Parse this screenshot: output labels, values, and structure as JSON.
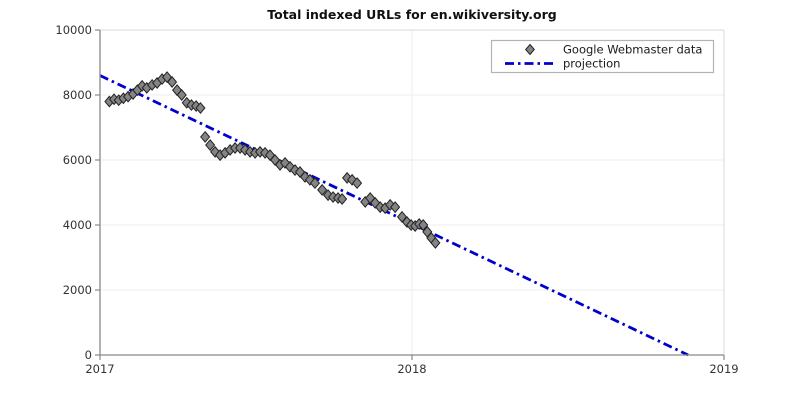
{
  "chart_data": {
    "type": "scatter",
    "title": "Total indexed URLs for en.wikiversity.org",
    "xlabel": "",
    "ylabel": "",
    "xlim": [
      2017,
      2019
    ],
    "ylim": [
      0,
      10000
    ],
    "x_ticks": [
      2017,
      2018,
      2019
    ],
    "x_tick_labels": [
      "2017",
      "2018",
      "2019"
    ],
    "y_ticks": [
      0,
      2000,
      4000,
      6000,
      8000,
      10000
    ],
    "y_tick_labels": [
      "0",
      "2000",
      "4000",
      "6000",
      "8000",
      "10000"
    ],
    "grid": true,
    "legend_position": "upper right",
    "legend": [
      "Google Webmaster data",
      "projection"
    ],
    "colors": {
      "scatter_fill": "#848484",
      "scatter_edge": "#222222",
      "projection_line": "#0000cc",
      "spine_dark": "#898989",
      "spine_light": "#d9d9d9",
      "gridline": "#ededed",
      "legend_border": "#b3b3b3"
    },
    "series": [
      {
        "name": "Google Webmaster data",
        "type": "scatter",
        "marker": "diamond",
        "points": [
          [
            2017.03,
            7800
          ],
          [
            2017.045,
            7870
          ],
          [
            2017.06,
            7840
          ],
          [
            2017.075,
            7900
          ],
          [
            2017.09,
            7950
          ],
          [
            2017.106,
            8030
          ],
          [
            2017.12,
            8150
          ],
          [
            2017.135,
            8280
          ],
          [
            2017.15,
            8220
          ],
          [
            2017.167,
            8310
          ],
          [
            2017.183,
            8370
          ],
          [
            2017.199,
            8490
          ],
          [
            2017.215,
            8550
          ],
          [
            2017.231,
            8400
          ],
          [
            2017.247,
            8150
          ],
          [
            2017.262,
            8000
          ],
          [
            2017.278,
            7760
          ],
          [
            2017.293,
            7690
          ],
          [
            2017.308,
            7660
          ],
          [
            2017.322,
            7600
          ],
          [
            2017.337,
            6710
          ],
          [
            2017.353,
            6460
          ],
          [
            2017.369,
            6250
          ],
          [
            2017.385,
            6150
          ],
          [
            2017.401,
            6220
          ],
          [
            2017.417,
            6310
          ],
          [
            2017.433,
            6370
          ],
          [
            2017.449,
            6370
          ],
          [
            2017.465,
            6310
          ],
          [
            2017.481,
            6250
          ],
          [
            2017.497,
            6220
          ],
          [
            2017.513,
            6250
          ],
          [
            2017.529,
            6220
          ],
          [
            2017.545,
            6150
          ],
          [
            2017.561,
            6000
          ],
          [
            2017.577,
            5850
          ],
          [
            2017.593,
            5910
          ],
          [
            2017.609,
            5790
          ],
          [
            2017.625,
            5690
          ],
          [
            2017.641,
            5630
          ],
          [
            2017.657,
            5480
          ],
          [
            2017.673,
            5390
          ],
          [
            2017.689,
            5290
          ],
          [
            2017.712,
            5080
          ],
          [
            2017.731,
            4920
          ],
          [
            2017.747,
            4860
          ],
          [
            2017.763,
            4830
          ],
          [
            2017.776,
            4800
          ],
          [
            2017.792,
            5450
          ],
          [
            2017.808,
            5390
          ],
          [
            2017.824,
            5290
          ],
          [
            2017.85,
            4710
          ],
          [
            2017.866,
            4830
          ],
          [
            2017.882,
            4680
          ],
          [
            2017.898,
            4550
          ],
          [
            2017.914,
            4520
          ],
          [
            2017.93,
            4620
          ],
          [
            2017.946,
            4550
          ],
          [
            2017.968,
            4250
          ],
          [
            2017.984,
            4090
          ],
          [
            2017.997,
            4000
          ],
          [
            2018.01,
            3970
          ],
          [
            2018.023,
            4030
          ],
          [
            2018.036,
            4000
          ],
          [
            2018.049,
            3790
          ],
          [
            2018.062,
            3600
          ],
          [
            2018.075,
            3450
          ]
        ]
      },
      {
        "name": "projection",
        "type": "line",
        "style": "dash-dot",
        "points": [
          [
            2017.0,
            8600
          ],
          [
            2018.885,
            0
          ]
        ]
      }
    ]
  }
}
